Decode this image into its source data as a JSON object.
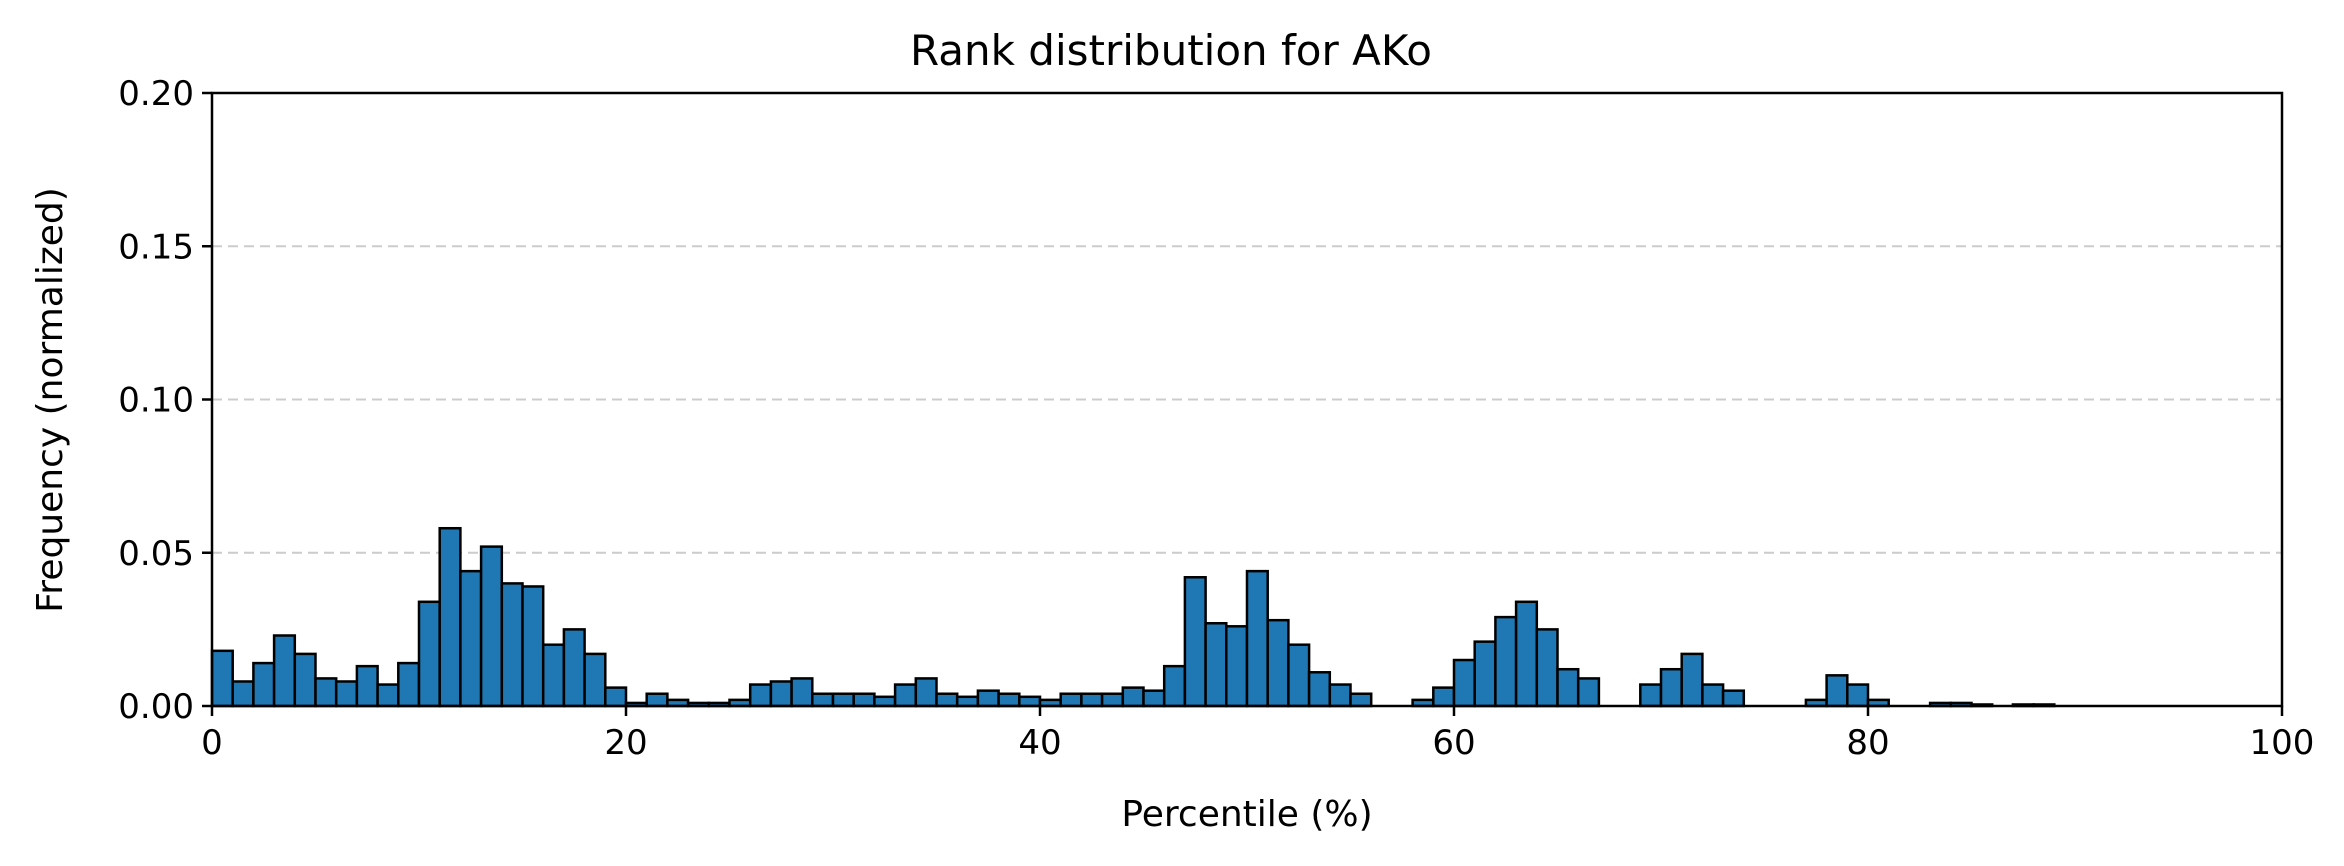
{
  "chart_data": {
    "type": "bar",
    "title": "Rank distribution for AKo",
    "xlabel": "Percentile (%)",
    "ylabel": "Frequency (normalized)",
    "xlim": [
      0,
      100
    ],
    "ylim": [
      0,
      0.2
    ],
    "xticks": [
      "0",
      "20",
      "40",
      "60",
      "80",
      "100"
    ],
    "yticks": [
      "0.00",
      "0.05",
      "0.10",
      "0.15",
      "0.20"
    ],
    "grid": "horizontal dashed",
    "bar_color": "#1f77b4",
    "bin_width": 1,
    "bin_starts": [
      0,
      1,
      2,
      3,
      4,
      5,
      6,
      7,
      8,
      9,
      10,
      11,
      12,
      13,
      14,
      15,
      16,
      17,
      18,
      19,
      20,
      21,
      22,
      23,
      24,
      25,
      26,
      27,
      28,
      29,
      30,
      31,
      32,
      33,
      34,
      35,
      36,
      37,
      38,
      39,
      40,
      41,
      42,
      43,
      44,
      45,
      46,
      47,
      48,
      49,
      50,
      51,
      52,
      53,
      54,
      55,
      56,
      57,
      58,
      59,
      60,
      61,
      62,
      63,
      64,
      65,
      66,
      67,
      68,
      69,
      70,
      71,
      72,
      73,
      74,
      75,
      76,
      77,
      78,
      79,
      80,
      81,
      82,
      83,
      84,
      85,
      86,
      87,
      88,
      89,
      90,
      91,
      92,
      93,
      94,
      95,
      96,
      97,
      98,
      99
    ],
    "values": [
      0.018,
      0.008,
      0.014,
      0.023,
      0.017,
      0.009,
      0.008,
      0.013,
      0.007,
      0.014,
      0.034,
      0.058,
      0.044,
      0.052,
      0.04,
      0.039,
      0.02,
      0.025,
      0.017,
      0.006,
      0.001,
      0.004,
      0.002,
      0.001,
      0.001,
      0.002,
      0.007,
      0.008,
      0.009,
      0.004,
      0.004,
      0.004,
      0.003,
      0.007,
      0.009,
      0.004,
      0.003,
      0.005,
      0.004,
      0.003,
      0.002,
      0.004,
      0.004,
      0.004,
      0.006,
      0.005,
      0.013,
      0.042,
      0.027,
      0.026,
      0.044,
      0.028,
      0.02,
      0.011,
      0.007,
      0.004,
      0.0,
      0.0,
      0.002,
      0.006,
      0.015,
      0.021,
      0.029,
      0.034,
      0.025,
      0.012,
      0.009,
      0.0,
      0.0,
      0.007,
      0.012,
      0.017,
      0.007,
      0.005,
      0.0,
      0.0,
      0.0,
      0.002,
      0.01,
      0.007,
      0.002,
      0.0,
      0.0,
      0.001,
      0.001,
      0.0005,
      0.0,
      0.0005,
      0.0005,
      0.0,
      0.0,
      0.0,
      0.0,
      0.0,
      0.0,
      0.0,
      0.0,
      0.0,
      0.0,
      0.0
    ]
  }
}
